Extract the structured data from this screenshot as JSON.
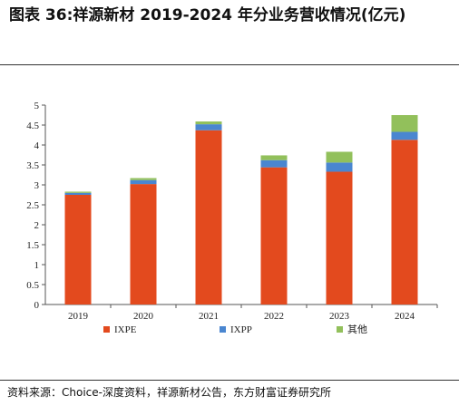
{
  "header": {
    "title": "图表 36:祥源新材 2019-2024 年分业务营收情况(亿元)"
  },
  "footer": {
    "source": "资料来源：Choice-深度资料，祥源新材公告，东方财富证券研究所"
  },
  "chart_data": {
    "type": "bar",
    "stacked": true,
    "title": "图表 36:祥源新材 2019-2024 年分业务营收情况(亿元)",
    "categories": [
      "2019",
      "2020",
      "2021",
      "2022",
      "2023",
      "2024"
    ],
    "series": [
      {
        "name": "IXPE",
        "color": "#E34A1E",
        "values": [
          2.75,
          3.02,
          4.37,
          3.44,
          3.33,
          4.13
        ]
      },
      {
        "name": "IXPP",
        "color": "#4A86D0",
        "values": [
          0.05,
          0.1,
          0.15,
          0.18,
          0.23,
          0.2
        ]
      },
      {
        "name": "其他",
        "color": "#92C05B",
        "values": [
          0.03,
          0.05,
          0.07,
          0.12,
          0.27,
          0.42
        ]
      }
    ],
    "ylim": [
      0,
      5
    ],
    "yticks": [
      "0",
      "0.5",
      "1",
      "1.5",
      "2",
      "2.5",
      "3",
      "3.5",
      "4",
      "4.5",
      "5"
    ],
    "xlabel": "",
    "ylabel": "",
    "grid": false,
    "legend_position": "bottom"
  }
}
